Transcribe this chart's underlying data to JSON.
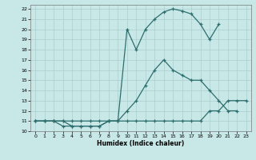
{
  "xlabel": "Humidex (Indice chaleur)",
  "bg_color": "#c8e8e8",
  "line_color": "#2e6e6e",
  "grid_color": "#aacece",
  "xlim": [
    -0.5,
    23.5
  ],
  "ylim": [
    10,
    22.4
  ],
  "yticks": [
    10,
    11,
    12,
    13,
    14,
    15,
    16,
    17,
    18,
    19,
    20,
    21,
    22
  ],
  "xticks": [
    0,
    1,
    2,
    3,
    4,
    5,
    6,
    7,
    8,
    9,
    10,
    11,
    12,
    13,
    14,
    15,
    16,
    17,
    18,
    19,
    20,
    21,
    22,
    23
  ],
  "line1_x": [
    0,
    1,
    2,
    3,
    4,
    5,
    6,
    7,
    8,
    9,
    10,
    11,
    12,
    13,
    14,
    15,
    16,
    17,
    18,
    19,
    20,
    21,
    22,
    23
  ],
  "line1_y": [
    11,
    11,
    11,
    11,
    11,
    11,
    11,
    11,
    11,
    11,
    11,
    11,
    11,
    11,
    11,
    11,
    11,
    11,
    11,
    12,
    12,
    13,
    13,
    13
  ],
  "line2_x": [
    0,
    1,
    2,
    3,
    4,
    5,
    6,
    7,
    8,
    9,
    10,
    11,
    12,
    13,
    14,
    15,
    16,
    17,
    18,
    19,
    20,
    21,
    22
  ],
  "line2_y": [
    11,
    11,
    11,
    10.5,
    10.5,
    10.5,
    10.5,
    10.5,
    11,
    11,
    12,
    13,
    14.5,
    16,
    17,
    16,
    15.5,
    15,
    15,
    14,
    13,
    12,
    12
  ],
  "line3_x": [
    0,
    1,
    2,
    3,
    4,
    5,
    6,
    7,
    8,
    9,
    10,
    11,
    12,
    13,
    14,
    15,
    16,
    17,
    18,
    19,
    20
  ],
  "line3_y": [
    11,
    11,
    11,
    11,
    10.5,
    10.5,
    10.5,
    10.5,
    11,
    11,
    20,
    18,
    20,
    21,
    21.7,
    22,
    21.8,
    21.5,
    20.5,
    19,
    20.5
  ]
}
